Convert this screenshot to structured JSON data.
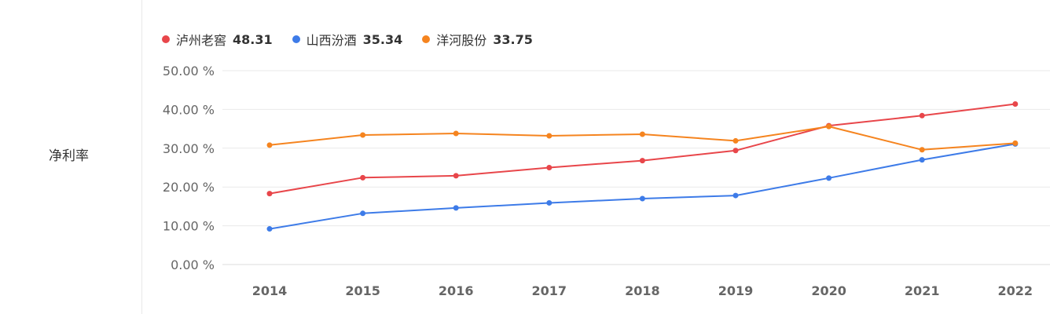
{
  "row_label": "净利率",
  "legend": [
    {
      "name": "泸州老窖",
      "value": "48.31",
      "color": "#e8464a"
    },
    {
      "name": "山西汾酒",
      "value": "35.34",
      "color": "#3d7be8"
    },
    {
      "name": "洋河股份",
      "value": "33.75",
      "color": "#f5841f"
    }
  ],
  "chart_data": {
    "type": "line",
    "categories": [
      "2014",
      "2015",
      "2016",
      "2017",
      "2018",
      "2019",
      "2020",
      "2021",
      "2022"
    ],
    "y_ticks": [
      "0.00 %",
      "10.00 %",
      "20.00 %",
      "30.00 %",
      "40.00 %",
      "50.00 %"
    ],
    "ylim": [
      0,
      50
    ],
    "grid": true,
    "legend_position": "top-left",
    "series": [
      {
        "name": "泸州老窖",
        "color": "#e8464a",
        "values": [
          18.3,
          22.4,
          22.9,
          25.0,
          26.8,
          29.4,
          35.8,
          38.4,
          41.4
        ]
      },
      {
        "name": "山西汾酒",
        "color": "#3d7be8",
        "values": [
          9.2,
          13.2,
          14.6,
          15.9,
          17.0,
          17.8,
          22.3,
          27.0,
          31.1
        ]
      },
      {
        "name": "洋河股份",
        "color": "#f5841f",
        "values": [
          30.8,
          33.4,
          33.8,
          33.2,
          33.6,
          31.9,
          35.6,
          29.6,
          31.3
        ]
      }
    ]
  }
}
